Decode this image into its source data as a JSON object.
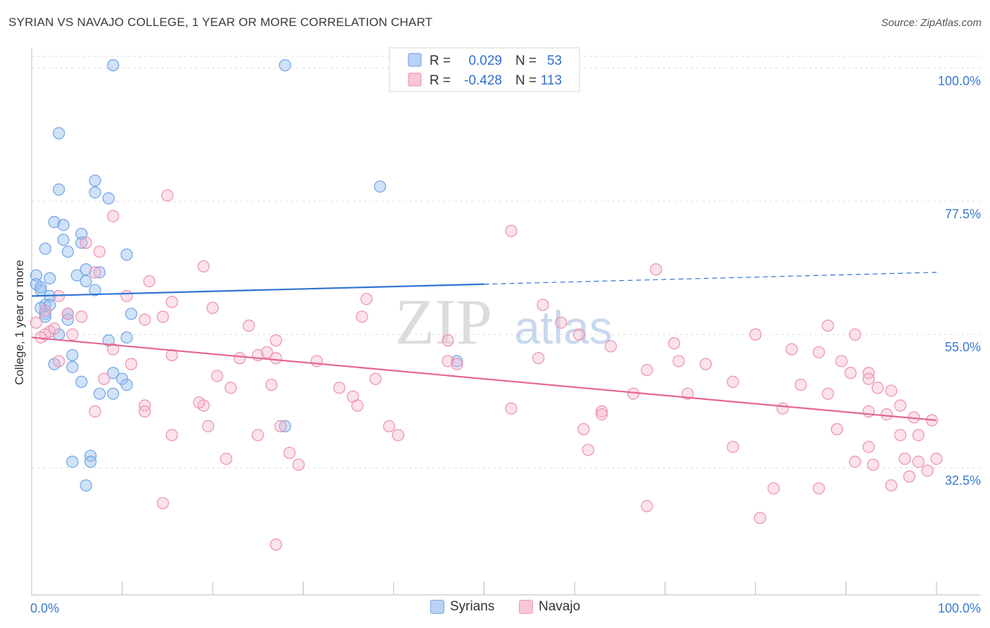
{
  "title": "SYRIAN VS NAVAJO COLLEGE, 1 YEAR OR MORE CORRELATION CHART",
  "source": "Source: ZipAtlas.com",
  "watermark": {
    "zip": "ZIP",
    "atlas": "atlas"
  },
  "legend_stats": [
    {
      "r_label": "R =",
      "r_value": "0.029",
      "n_label": "N =",
      "n_value": "53"
    },
    {
      "r_label": "R =",
      "r_value": "-0.428",
      "n_label": "N =",
      "n_value": "113"
    }
  ],
  "chart_data": {
    "type": "scatter",
    "title": "SYRIAN VS NAVAJO COLLEGE, 1 YEAR OR MORE CORRELATION CHART",
    "xlabel": "",
    "ylabel": "College, 1 year or more",
    "xlim": [
      0,
      100
    ],
    "ylim": [
      11,
      102
    ],
    "x_tick_labels": [
      "0.0%",
      "100.0%"
    ],
    "y_ticks": [
      32.5,
      55.0,
      77.5,
      100.0
    ],
    "y_tick_labels": [
      "32.5%",
      "55.0%",
      "77.5%",
      "100.0%"
    ],
    "grid": true,
    "colors": {
      "syrians": "#6fa3e6",
      "syrians_line": "#2f74d0",
      "navajo": "#ec8fb0",
      "navajo_line": "#e5668f",
      "tick_label": "#3a78d0"
    },
    "series": [
      {
        "name": "Syrians",
        "trend": {
          "x0": 0,
          "y0": 61.5,
          "x1": 50,
          "y1": 63.5,
          "dashed_to": 100,
          "dashed_y": 65.5
        },
        "points": [
          [
            9,
            100.5
          ],
          [
            28,
            100.5
          ],
          [
            3,
            89
          ],
          [
            3,
            79.5
          ],
          [
            7,
            81
          ],
          [
            7,
            79
          ],
          [
            8.5,
            78
          ],
          [
            38.5,
            80
          ],
          [
            2.5,
            74
          ],
          [
            3.5,
            73.5
          ],
          [
            5.5,
            72
          ],
          [
            3.5,
            71
          ],
          [
            5.5,
            70.5
          ],
          [
            1.5,
            69.5
          ],
          [
            4,
            69
          ],
          [
            10.5,
            68.5
          ],
          [
            6,
            66
          ],
          [
            7.5,
            65.5
          ],
          [
            5,
            65
          ],
          [
            2,
            64.5
          ],
          [
            6,
            64
          ],
          [
            0.5,
            65
          ],
          [
            0.5,
            63.5
          ],
          [
            1,
            62.5
          ],
          [
            7,
            62.5
          ],
          [
            2,
            61.5
          ],
          [
            1.5,
            60
          ],
          [
            1,
            59.5
          ],
          [
            1.5,
            58.5
          ],
          [
            4,
            58.5
          ],
          [
            11,
            58.5
          ],
          [
            1.5,
            58
          ],
          [
            4,
            57.5
          ],
          [
            3,
            55
          ],
          [
            10.5,
            54.5
          ],
          [
            8.5,
            54
          ],
          [
            4.5,
            51.5
          ],
          [
            2.5,
            50
          ],
          [
            4.5,
            49.5
          ],
          [
            9,
            48.5
          ],
          [
            10,
            47.5
          ],
          [
            5.5,
            47
          ],
          [
            10.5,
            46.5
          ],
          [
            7.5,
            45
          ],
          [
            9,
            45
          ],
          [
            28,
            39.5
          ],
          [
            47,
            50.5
          ],
          [
            6.5,
            34.5
          ],
          [
            4.5,
            33.5
          ],
          [
            6.5,
            33.5
          ],
          [
            6,
            29.5
          ],
          [
            1,
            63
          ],
          [
            2,
            60
          ]
        ]
      },
      {
        "name": "Navajo",
        "trend": {
          "x0": 0,
          "y0": 54.5,
          "x1": 100,
          "y1": 40.5
        },
        "points": [
          [
            15,
            78.5
          ],
          [
            9,
            75
          ],
          [
            53,
            72.5
          ],
          [
            7.5,
            69
          ],
          [
            6,
            70.5
          ],
          [
            19,
            66.5
          ],
          [
            69,
            66
          ],
          [
            13,
            64
          ],
          [
            7,
            65.5
          ],
          [
            3,
            61.5
          ],
          [
            10.5,
            61.5
          ],
          [
            37,
            61
          ],
          [
            15.5,
            60.5
          ],
          [
            56.5,
            60
          ],
          [
            20,
            59.5
          ],
          [
            1.5,
            59
          ],
          [
            4,
            58.5
          ],
          [
            5.5,
            58
          ],
          [
            12.5,
            57.5
          ],
          [
            14.5,
            58
          ],
          [
            36.5,
            58
          ],
          [
            58.5,
            57
          ],
          [
            24,
            56.5
          ],
          [
            2,
            55.5
          ],
          [
            2.5,
            56
          ],
          [
            1.5,
            55
          ],
          [
            4.5,
            55
          ],
          [
            27,
            54
          ],
          [
            46,
            54
          ],
          [
            60.5,
            55
          ],
          [
            80,
            55
          ],
          [
            88,
            56.5
          ],
          [
            91,
            55
          ],
          [
            71,
            53.5
          ],
          [
            1,
            54.5
          ],
          [
            3,
            50.5
          ],
          [
            9,
            52.5
          ],
          [
            11,
            50
          ],
          [
            15.5,
            51.5
          ],
          [
            23,
            51
          ],
          [
            25,
            51.5
          ],
          [
            26,
            52
          ],
          [
            27,
            51
          ],
          [
            31.5,
            50.5
          ],
          [
            46,
            50.5
          ],
          [
            47,
            50
          ],
          [
            56,
            51
          ],
          [
            64,
            53
          ],
          [
            68,
            49
          ],
          [
            71.5,
            50.5
          ],
          [
            74.5,
            50
          ],
          [
            84,
            52.5
          ],
          [
            87,
            52
          ],
          [
            89.5,
            50.5
          ],
          [
            90.5,
            48.5
          ],
          [
            92.5,
            48.5
          ],
          [
            92.5,
            47.5
          ],
          [
            8,
            47.5
          ],
          [
            20.5,
            48
          ],
          [
            26.5,
            46.5
          ],
          [
            22,
            46
          ],
          [
            34,
            46
          ],
          [
            35.5,
            44.5
          ],
          [
            38,
            47.5
          ],
          [
            12.5,
            43
          ],
          [
            7,
            42
          ],
          [
            12.5,
            42
          ],
          [
            19,
            43
          ],
          [
            18.5,
            43.5
          ],
          [
            36,
            43
          ],
          [
            53,
            42.5
          ],
          [
            63,
            42
          ],
          [
            66.5,
            45
          ],
          [
            72.5,
            45
          ],
          [
            77.5,
            47
          ],
          [
            85,
            46.5
          ],
          [
            88,
            45
          ],
          [
            93.5,
            46
          ],
          [
            95,
            45.5
          ],
          [
            83,
            42.5
          ],
          [
            92.5,
            42
          ],
          [
            94.5,
            41.5
          ],
          [
            96,
            43
          ],
          [
            97.5,
            41
          ],
          [
            99.5,
            40.5
          ],
          [
            15.5,
            38
          ],
          [
            19.5,
            39.5
          ],
          [
            25,
            38
          ],
          [
            27.5,
            39.5
          ],
          [
            39.5,
            39.5
          ],
          [
            40.5,
            38
          ],
          [
            61,
            39
          ],
          [
            63,
            41.5
          ],
          [
            89,
            39
          ],
          [
            96,
            38
          ],
          [
            98,
            38
          ],
          [
            92.5,
            36
          ],
          [
            21.5,
            34
          ],
          [
            28.5,
            35
          ],
          [
            29.5,
            33
          ],
          [
            61.5,
            35.5
          ],
          [
            77.5,
            36
          ],
          [
            91,
            33.5
          ],
          [
            93,
            33
          ],
          [
            96.5,
            34
          ],
          [
            98,
            33.5
          ],
          [
            99,
            32
          ],
          [
            100,
            34
          ],
          [
            97,
            31
          ],
          [
            95,
            29.5
          ],
          [
            14.5,
            26.5
          ],
          [
            68,
            26
          ],
          [
            82,
            29
          ],
          [
            87,
            29
          ],
          [
            80.5,
            24
          ],
          [
            27,
            19.5
          ],
          [
            0.5,
            57
          ]
        ]
      }
    ]
  }
}
